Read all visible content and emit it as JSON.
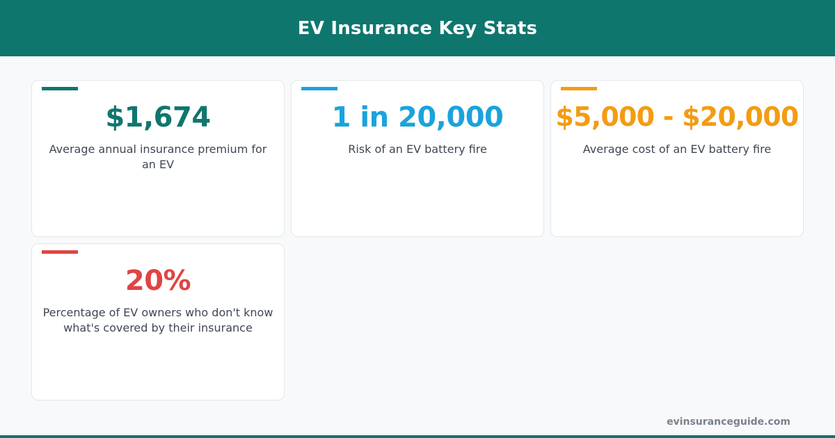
{
  "header": {
    "title": "EV Insurance Key Stats"
  },
  "stats": [
    {
      "value": "$1,674",
      "description": "Average annual insurance premium for an EV",
      "color": "#0f766e"
    },
    {
      "value": "1 in 20,000",
      "description": "Risk of an EV battery fire",
      "color": "#1aa3dc"
    },
    {
      "value": "$5,000 - $20,000",
      "description": "Average cost of an EV battery fire",
      "color": "#f39c12"
    },
    {
      "value": "20%",
      "description": "Percentage of EV owners who don't know what's covered by their insurance",
      "color": "#e04444"
    }
  ],
  "footer": {
    "site": "evinsuranceguide.com"
  },
  "colors": {
    "brand": "#0f766e",
    "background": "#f7f9fa"
  }
}
